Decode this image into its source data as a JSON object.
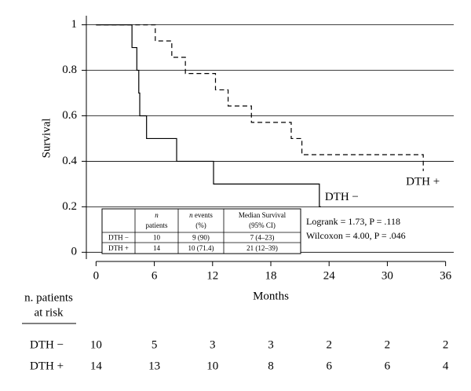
{
  "chart_data": {
    "type": "step",
    "xlabel": "Months",
    "ylabel": "Survival",
    "xlim": [
      -1,
      37
    ],
    "xticks": [
      0,
      6,
      12,
      18,
      24,
      30,
      36
    ],
    "ylim": [
      -0.03,
      1.04
    ],
    "yticks": [
      0,
      0.2,
      0.4,
      0.6,
      0.8,
      1
    ],
    "grid": true,
    "series": [
      {
        "name": "DTH −",
        "color": "#000000",
        "dashed": false,
        "x": [
          0,
          3.7,
          4.2,
          4.4,
          4.5,
          5.2,
          8.3,
          12.1,
          23
        ],
        "values": [
          1,
          0.9,
          0.8,
          0.7,
          0.6,
          0.5,
          0.4,
          0.3,
          0.2
        ]
      },
      {
        "name": "DTH +",
        "color": "#000000",
        "dashed": true,
        "x": [
          0,
          6.1,
          7.8,
          9.2,
          12.3,
          13.6,
          16,
          20.1,
          21.2,
          33.7
        ],
        "values": [
          1,
          0.929,
          0.857,
          0.786,
          0.714,
          0.643,
          0.571,
          0.5,
          0.429,
          0.357
        ]
      }
    ],
    "inset_table": {
      "header": [
        "",
        "n patients",
        "n events (%)",
        "Median Survival (95% CI)"
      ],
      "rows": [
        [
          "DTH −",
          "10",
          "9 (90)",
          "7 (4–23)"
        ],
        [
          "DTH +",
          "14",
          "10 (71.4)",
          "21 (12–39)"
        ]
      ]
    },
    "annotations": [
      "Logrank = 1.73, P = .118",
      "Wilcoxon = 4.00, P = .046"
    ],
    "risk_table": {
      "title": [
        "n. patients",
        "at risk"
      ],
      "rows": [
        {
          "name": "DTH −",
          "counts": [
            10,
            5,
            3,
            3,
            2,
            2,
            2
          ]
        },
        {
          "name": "DTH +",
          "counts": [
            14,
            13,
            10,
            8,
            6,
            6,
            4
          ]
        }
      ]
    }
  }
}
